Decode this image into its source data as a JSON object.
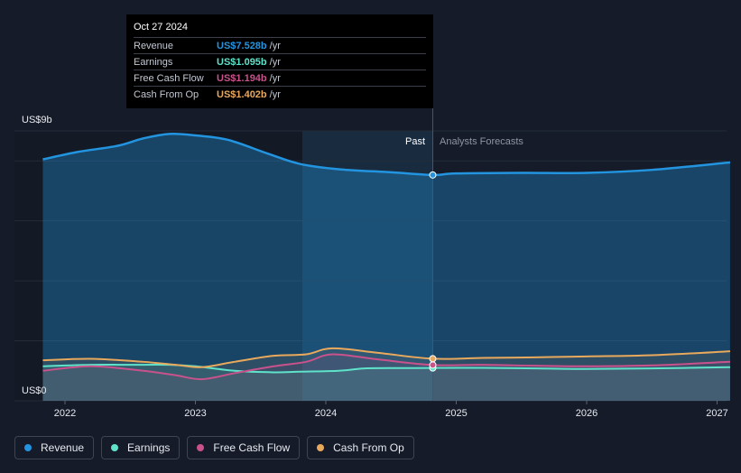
{
  "chart_data": {
    "type": "line",
    "y_axis": {
      "min": 0,
      "max": 9,
      "unit": "US$ b",
      "top_label": "US$9b",
      "bottom_label": "US$0"
    },
    "x_axis": {
      "ticks": [
        "2022",
        "2023",
        "2024",
        "2025",
        "2026",
        "2027"
      ]
    },
    "regions": {
      "past_label": "Past",
      "forecast_label": "Analysts Forecasts"
    },
    "series": [
      {
        "name": "Revenue",
        "color": "#2394df",
        "points": [
          [
            2021.83,
            8.05
          ],
          [
            2022.1,
            8.3
          ],
          [
            2022.4,
            8.5
          ],
          [
            2022.6,
            8.75
          ],
          [
            2022.8,
            8.9
          ],
          [
            2023.0,
            8.85
          ],
          [
            2023.25,
            8.7
          ],
          [
            2023.55,
            8.25
          ],
          [
            2023.8,
            7.9
          ],
          [
            2024.1,
            7.72
          ],
          [
            2024.5,
            7.62
          ],
          [
            2024.82,
            7.53
          ],
          [
            2025.0,
            7.58
          ],
          [
            2025.5,
            7.6
          ],
          [
            2026.0,
            7.6
          ],
          [
            2026.5,
            7.7
          ],
          [
            2027.1,
            7.95
          ]
        ]
      },
      {
        "name": "Earnings",
        "color": "#5ee2c9",
        "points": [
          [
            2021.83,
            1.15
          ],
          [
            2022.2,
            1.2
          ],
          [
            2022.5,
            1.2
          ],
          [
            2022.8,
            1.2
          ],
          [
            2023.0,
            1.15
          ],
          [
            2023.3,
            1.0
          ],
          [
            2023.6,
            0.95
          ],
          [
            2023.8,
            0.97
          ],
          [
            2024.1,
            1.0
          ],
          [
            2024.3,
            1.08
          ],
          [
            2024.6,
            1.09
          ],
          [
            2024.82,
            1.095
          ],
          [
            2025.2,
            1.1
          ],
          [
            2025.6,
            1.08
          ],
          [
            2026.0,
            1.06
          ],
          [
            2026.5,
            1.08
          ],
          [
            2027.1,
            1.12
          ]
        ]
      },
      {
        "name": "Free Cash Flow",
        "color": "#c9528c",
        "points": [
          [
            2021.83,
            1.0
          ],
          [
            2022.2,
            1.15
          ],
          [
            2022.6,
            1.0
          ],
          [
            2022.85,
            0.85
          ],
          [
            2023.05,
            0.72
          ],
          [
            2023.3,
            0.92
          ],
          [
            2023.6,
            1.15
          ],
          [
            2023.85,
            1.3
          ],
          [
            2024.05,
            1.55
          ],
          [
            2024.4,
            1.38
          ],
          [
            2024.82,
            1.194
          ],
          [
            2025.2,
            1.2
          ],
          [
            2025.6,
            1.17
          ],
          [
            2026.0,
            1.15
          ],
          [
            2026.5,
            1.18
          ],
          [
            2027.1,
            1.3
          ]
        ]
      },
      {
        "name": "Cash From Op",
        "color": "#e8a95d",
        "points": [
          [
            2021.83,
            1.35
          ],
          [
            2022.2,
            1.4
          ],
          [
            2022.6,
            1.3
          ],
          [
            2022.85,
            1.2
          ],
          [
            2023.05,
            1.12
          ],
          [
            2023.3,
            1.3
          ],
          [
            2023.6,
            1.5
          ],
          [
            2023.85,
            1.55
          ],
          [
            2024.05,
            1.75
          ],
          [
            2024.4,
            1.6
          ],
          [
            2024.82,
            1.402
          ],
          [
            2025.2,
            1.43
          ],
          [
            2025.6,
            1.45
          ],
          [
            2026.0,
            1.48
          ],
          [
            2026.5,
            1.52
          ],
          [
            2027.1,
            1.65
          ]
        ]
      }
    ]
  },
  "tooltip": {
    "date": "Oct 27 2024",
    "rows": [
      {
        "name": "Revenue",
        "value": "US$7.528b",
        "unit": "/yr",
        "color": "#2394df"
      },
      {
        "name": "Earnings",
        "value": "US$1.095b",
        "unit": "/yr",
        "color": "#5ee2c9"
      },
      {
        "name": "Free Cash Flow",
        "value": "US$1.194b",
        "unit": "/yr",
        "color": "#c9528c"
      },
      {
        "name": "Cash From Op",
        "value": "US$1.402b",
        "unit": "/yr",
        "color": "#e8a95d"
      }
    ]
  },
  "legend": [
    {
      "label": "Revenue",
      "color": "#2394df"
    },
    {
      "label": "Earnings",
      "color": "#5ee2c9"
    },
    {
      "label": "Free Cash Flow",
      "color": "#c9528c"
    },
    {
      "label": "Cash From Op",
      "color": "#e8a95d"
    }
  ]
}
